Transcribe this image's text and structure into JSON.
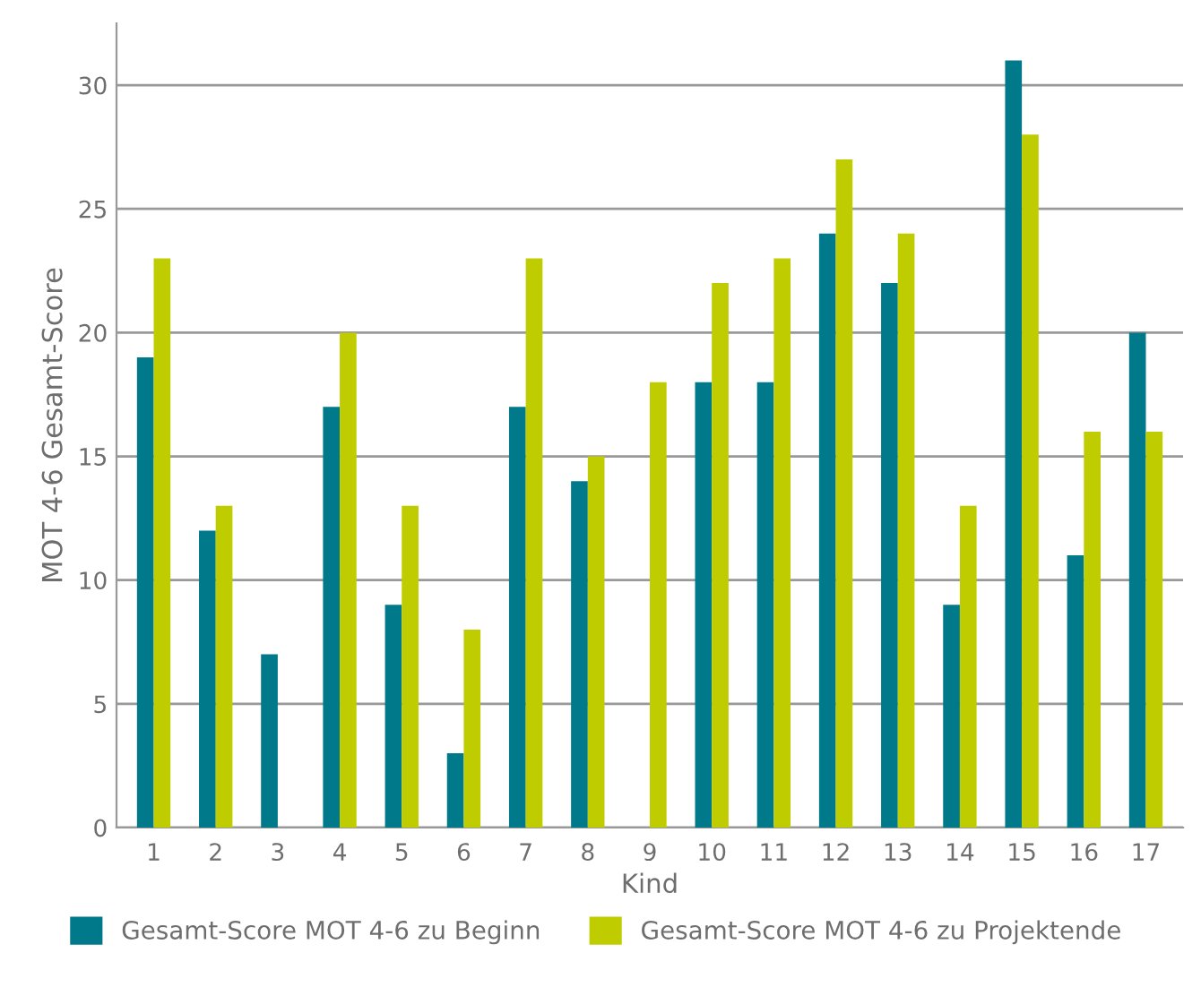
{
  "chart_data": {
    "type": "bar",
    "xlabel": "Kind",
    "ylabel": "MOT 4-6 Gesamt-Score",
    "categories": [
      "1",
      "2",
      "3",
      "4",
      "5",
      "6",
      "7",
      "8",
      "9",
      "10",
      "11",
      "12",
      "13",
      "14",
      "15",
      "16",
      "17"
    ],
    "series": [
      {
        "name": "Gesamt-Score MOT 4-6 zu Beginn",
        "color": "#00798a",
        "values": [
          19,
          12,
          7,
          17,
          9,
          3,
          17,
          14,
          null,
          18,
          18,
          24,
          22,
          9,
          31,
          11,
          20
        ]
      },
      {
        "name": "Gesamt-Score MOT 4-6 zu Projektende",
        "color": "#bfcc00",
        "values": [
          23,
          13,
          null,
          20,
          13,
          8,
          23,
          15,
          18,
          22,
          23,
          27,
          24,
          13,
          28,
          16,
          16
        ]
      }
    ],
    "ylim": [
      0,
      32.5
    ],
    "yticks": [
      0,
      5,
      10,
      15,
      20,
      25,
      30
    ],
    "grid": "y",
    "legend": "bottom"
  }
}
